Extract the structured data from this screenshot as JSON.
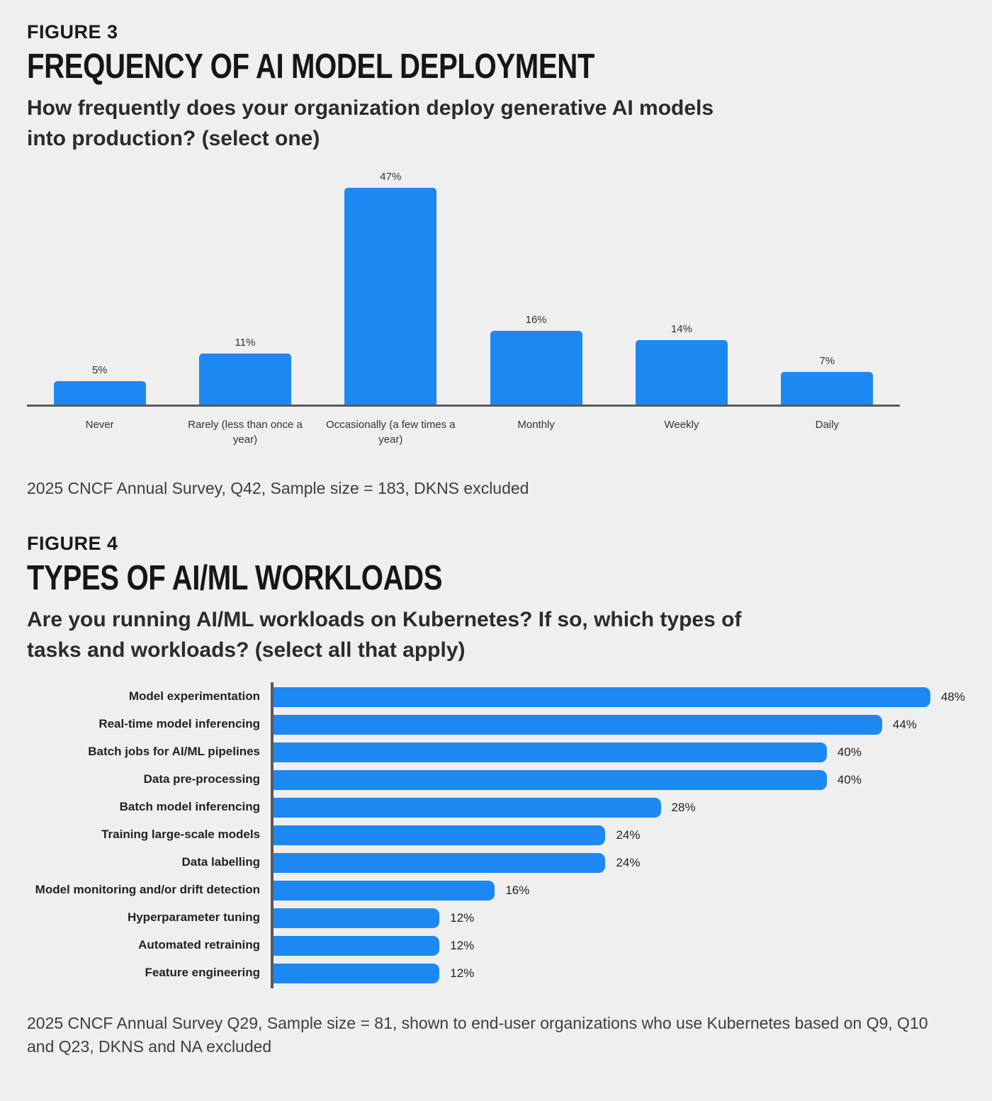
{
  "page": {
    "background_color": "#efefef",
    "accent_color": "#1e88f2",
    "axis_color": "#58595b"
  },
  "figure3": {
    "eyebrow": "FIGURE 3",
    "title": "FREQUENCY OF AI MODEL DEPLOYMENT",
    "subtitle": "How frequently does your organization deploy generative AI models into production? (select one)",
    "caption": "2025 CNCF Annual Survey, Q42, Sample size = 183, DKNS excluded"
  },
  "figure4": {
    "eyebrow": "FIGURE 4",
    "title": "TYPES OF AI/ML WORKLOADS",
    "subtitle": "Are you running AI/ML workloads on Kubernetes? If so, which types of tasks and workloads? (select all that apply)",
    "caption": "2025 CNCF Annual Survey Q29, Sample size = 81, shown to end-user organizations who use Kubernetes based on Q9, Q10 and Q23, DKNS and NA excluded"
  },
  "chart_data": [
    {
      "type": "bar",
      "orientation": "vertical",
      "title": "Frequency of AI model deployment",
      "categories": [
        "Never",
        "Rarely (less than once a year)",
        "Occasionally (a few times a year)",
        "Monthly",
        "Weekly",
        "Daily"
      ],
      "values": [
        5,
        11,
        47,
        16,
        14,
        7
      ],
      "unit": "%",
      "ylim": [
        0,
        50
      ],
      "grid": false,
      "legend": "none",
      "bar_color": "#1e88f2",
      "value_label_position": "above-bar"
    },
    {
      "type": "bar",
      "orientation": "horizontal",
      "title": "Types of AI/ML workloads",
      "categories": [
        "Model experimentation",
        "Real-time model inferencing",
        "Batch jobs for AI/ML pipelines",
        "Data pre-processing",
        "Batch model inferencing",
        "Training large-scale models",
        "Data labelling",
        "Model monitoring and/or drift detection",
        "Hyperparameter tuning",
        "Automated retraining",
        "Feature engineering"
      ],
      "values": [
        48,
        44,
        40,
        40,
        28,
        24,
        24,
        16,
        12,
        12,
        12
      ],
      "unit": "%",
      "xlim": [
        0,
        50
      ],
      "grid": false,
      "legend": "none",
      "bar_color": "#1e88f2",
      "value_label_position": "right-of-bar"
    }
  ]
}
